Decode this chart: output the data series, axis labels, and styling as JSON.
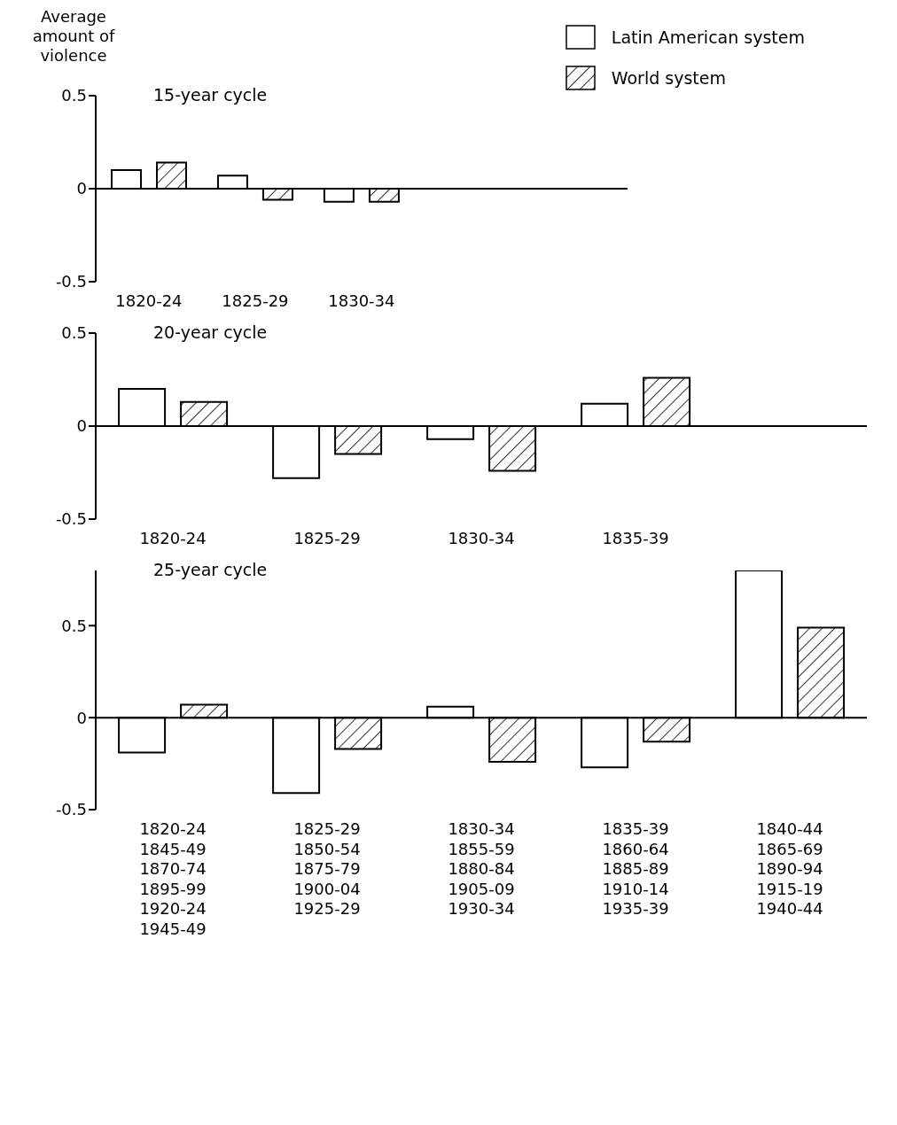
{
  "chart_data": [
    {
      "type": "bar",
      "title": "15-year cycle",
      "ylabel": "Average amount of violence",
      "categories": [
        "1820-24",
        "1825-29",
        "1830-34",
        null,
        null
      ],
      "series": [
        {
          "name": "Latin American system",
          "color": "#ffffff",
          "values": [
            0.1,
            0.07,
            -0.07,
            null,
            null
          ]
        },
        {
          "name": "World system",
          "color": "#000000",
          "values": [
            0.14,
            -0.06,
            -0.07,
            null,
            null
          ]
        }
      ],
      "ylim": [
        -0.5,
        0.5
      ],
      "yticks": [
        -0.5,
        0,
        0.5
      ],
      "legend": "top right"
    },
    {
      "type": "bar",
      "title": "20-year cycle",
      "categories": [
        "1820-24",
        "1825-29",
        "1830-34",
        "1835-39",
        null
      ],
      "series": [
        {
          "color": "#ffffff",
          "values": [
            0.2,
            -0.28,
            -0.07,
            0.12,
            null
          ]
        },
        {
          "color": "#000000",
          "values": [
            0.13,
            -0.15,
            -0.24,
            0.26,
            null
          ]
        }
      ],
      "ylim": [
        -0.5,
        0.5
      ],
      "yticks": [
        -0.5,
        0,
        0.5
      ]
    },
    {
      "type": "bar",
      "title": "25-year cycle",
      "categories": [
        "1820-24\n1845-49\n1870-74\n1895-99\n1920-24\n1945-49",
        "1825-29\n1850-54\n1875-79\n1900-04\n1925-29",
        "1830-34\n1855-59\n1880-84\n1905-09\n1930-34",
        "1835-39\n1860-64\n1885-89\n1910-14\n1935-39",
        "1840-44\n1865-69\n1890-94\n1915-19\n1940-44"
      ],
      "series": [
        {
          "color": "#ffffff",
          "values": [
            -0.19,
            -0.41,
            0.06,
            -0.27,
            0.8
          ]
        },
        {
          "color": "#000000",
          "values": [
            0.07,
            -0.17,
            -0.24,
            -0.13,
            0.49
          ]
        }
      ],
      "ylim": [
        -0.5,
        0.8
      ],
      "yticks": [
        -0.5,
        0,
        0.5
      ]
    }
  ]
}
